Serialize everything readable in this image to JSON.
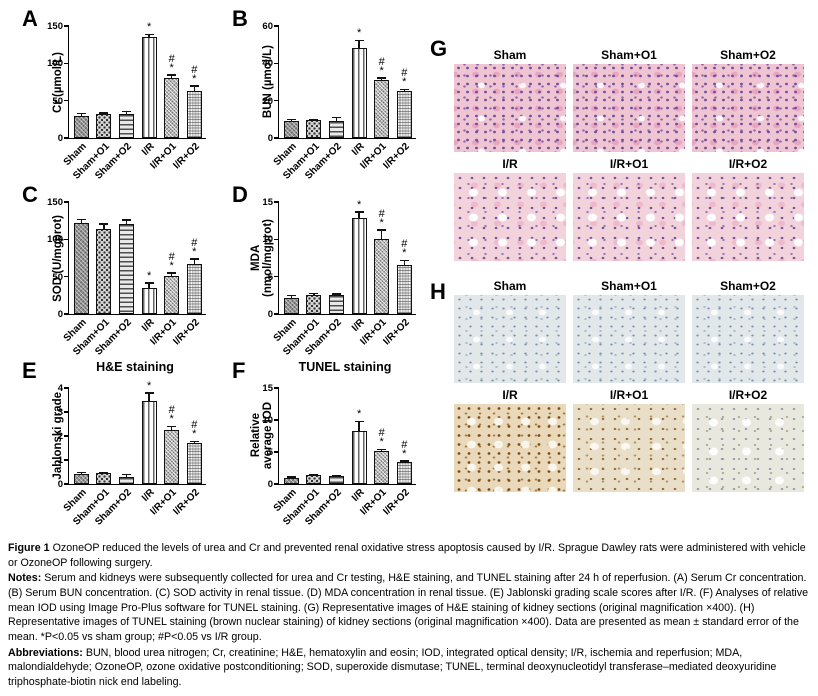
{
  "categories": [
    "Sham",
    "Sham+O1",
    "Sham+O2",
    "I/R",
    "I/R+O1",
    "I/R+O2"
  ],
  "charts": [
    {
      "panel": "A",
      "title": "",
      "ylabel": "Cr (µmol/L)",
      "type": "bar",
      "ymax": 150,
      "yticks": [
        0,
        50,
        100,
        150
      ],
      "values": [
        30,
        32,
        32,
        135,
        80,
        63
      ],
      "errors": [
        3,
        2,
        4,
        4,
        5,
        7
      ],
      "sig": [
        "",
        "",
        "",
        "*",
        "#*",
        "#*"
      ]
    },
    {
      "panel": "B",
      "title": "",
      "ylabel": "BUN (µmol/L)",
      "type": "bar",
      "ymax": 60,
      "yticks": [
        0,
        20,
        40,
        60
      ],
      "values": [
        9,
        9.5,
        9,
        48,
        31,
        25
      ],
      "errors": [
        1,
        0.6,
        2,
        4.5,
        1.2,
        1
      ],
      "sig": [
        "",
        "",
        "",
        "*",
        "#*",
        "#*"
      ]
    },
    {
      "panel": "C",
      "title": "",
      "ylabel": "SOD (U/mgprot)",
      "type": "bar",
      "ymax": 150,
      "yticks": [
        0,
        50,
        100,
        150
      ],
      "values": [
        122,
        114,
        120,
        35,
        51,
        67
      ],
      "errors": [
        5,
        7,
        6,
        7,
        4,
        7
      ],
      "sig": [
        "",
        "",
        "",
        "*",
        "#*",
        "#*"
      ]
    },
    {
      "panel": "D",
      "title": "",
      "ylabel": "MDA\n(nmol/mgprot)",
      "type": "bar",
      "ymax": 15,
      "yticks": [
        0,
        5,
        10,
        15
      ],
      "values": [
        2.2,
        2.5,
        2.5,
        12.8,
        10.1,
        6.5
      ],
      "errors": [
        0.3,
        0.3,
        0.2,
        0.9,
        1.2,
        0.7
      ],
      "sig": [
        "",
        "",
        "",
        "*",
        "#*",
        "#*"
      ]
    },
    {
      "panel": "E",
      "title": "H&E staining",
      "ylabel": "Jablonski grade",
      "type": "bar",
      "ymax": 4,
      "yticks": [
        0,
        1,
        2,
        3,
        4
      ],
      "values": [
        0.4,
        0.45,
        0.3,
        3.45,
        2.25,
        1.7
      ],
      "errors": [
        0.08,
        0.05,
        0.1,
        0.35,
        0.15,
        0.08
      ],
      "sig": [
        "",
        "",
        "",
        "*",
        "#*",
        "#*"
      ]
    },
    {
      "panel": "F",
      "title": "TUNEL staining",
      "ylabel": "Relative\naverage IOD",
      "type": "bar",
      "ymax": 15,
      "yticks": [
        0,
        5,
        10,
        15
      ],
      "values": [
        1,
        1.4,
        1.2,
        8.3,
        5.1,
        3.4
      ],
      "errors": [
        0.1,
        0.15,
        0.1,
        1.5,
        0.3,
        0.2
      ],
      "sig": [
        "",
        "",
        "",
        "*",
        "#*",
        "#*"
      ]
    }
  ],
  "chart_data": {
    "type": "bar",
    "categories": [
      "Sham",
      "Sham+O1",
      "Sham+O2",
      "I/R",
      "I/R+O1",
      "I/R+O2"
    ],
    "series": [
      {
        "name": "Cr (µmol/L)",
        "values": [
          30,
          32,
          32,
          135,
          80,
          63
        ],
        "ylim": [
          0,
          150
        ]
      },
      {
        "name": "BUN (µmol/L)",
        "values": [
          9,
          9.5,
          9,
          48,
          31,
          25
        ],
        "ylim": [
          0,
          60
        ]
      },
      {
        "name": "SOD (U/mgprot)",
        "values": [
          122,
          114,
          120,
          35,
          51,
          67
        ],
        "ylim": [
          0,
          150
        ]
      },
      {
        "name": "MDA (nmol/mgprot)",
        "values": [
          2.2,
          2.5,
          2.5,
          12.8,
          10.1,
          6.5
        ],
        "ylim": [
          0,
          15
        ]
      },
      {
        "name": "Jablonski grade (H&E staining)",
        "values": [
          0.4,
          0.45,
          0.3,
          3.45,
          2.25,
          1.7
        ],
        "ylim": [
          0,
          4
        ]
      },
      {
        "name": "Relative average IOD (TUNEL staining)",
        "values": [
          1,
          1.4,
          1.2,
          8.3,
          5.1,
          3.4
        ],
        "ylim": [
          0,
          15
        ]
      }
    ],
    "grid": false,
    "legend": "none",
    "significance_markers": {
      "asterisk": "*P<0.05 vs sham group",
      "hash": "#P<0.05 vs I/R group"
    }
  },
  "image_panels": [
    {
      "panel": "G",
      "stain": "H&E",
      "rows": [
        {
          "labels": [
            "Sham",
            "Sham+O1",
            "Sham+O2"
          ],
          "tones": [
            "he-dense",
            "he-dense",
            "he-dense"
          ]
        },
        {
          "labels": [
            "I/R",
            "I/R+O1",
            "I/R+O2"
          ],
          "tones": [
            "he-damaged",
            "he-damaged",
            "he-damaged"
          ]
        }
      ]
    },
    {
      "panel": "H",
      "stain": "TUNEL",
      "rows": [
        {
          "labels": [
            "Sham",
            "Sham+O1",
            "Sham+O2"
          ],
          "tones": [
            "tunel-neg",
            "tunel-neg",
            "tunel-neg"
          ]
        },
        {
          "labels": [
            "I/R",
            "I/R+O1",
            "I/R+O2"
          ],
          "tones": [
            "tunel-strong",
            "tunel-mid",
            "tunel-weak"
          ]
        }
      ]
    }
  ],
  "colors": {
    "he_tissue_pink": "#efc5d3",
    "he_nuclei_purple": "#6d4f96",
    "tunel_negative_bluegray": "#e2e7ea",
    "tunel_positive_brown": "#7a4d1b",
    "tunel_tissue_tan": "#e9d9ba",
    "bar_outline": "#111111"
  },
  "caption": {
    "paragraphs": [
      {
        "label": "Figure 1",
        "text": "OzoneOP reduced the levels of urea and Cr and prevented renal oxidative stress apoptosis caused by I/R. Sprague Dawley rats were administered with vehicle or OzoneOP following surgery."
      },
      {
        "label": "Notes:",
        "text": "Serum and kidneys were subsequently collected for urea and Cr testing, H&E staining, and TUNEL staining after 24 h of reperfusion. (A) Serum Cr concentration. (B) Serum BUN concentration. (C) SOD activity in renal tissue. (D) MDA concentration in renal tissue. (E) Jablonski grading scale scores after I/R. (F) Analyses of relative mean IOD using Image Pro-Plus software for TUNEL staining. (G) Representative images of H&E staining of kidney sections (original magnification ×400). (H) Representative images of TUNEL staining (brown nuclear staining) of kidney sections (original magnification ×400). Data are presented as mean ± standard error of the mean. *P<0.05 vs sham group; #P<0.05 vs I/R group."
      },
      {
        "label": "Abbreviations:",
        "text": "BUN, blood urea nitrogen; Cr, creatinine; H&E, hematoxylin and eosin; IOD, integrated optical density; I/R, ischemia and reperfusion; MDA, malondialdehyde; OzoneOP, ozone oxidative postconditioning; SOD, superoxide dismutase; TUNEL, terminal deoxynucleotidyl transferase–mediated deoxyuridine triphosphate-biotin nick end labeling."
      }
    ]
  }
}
